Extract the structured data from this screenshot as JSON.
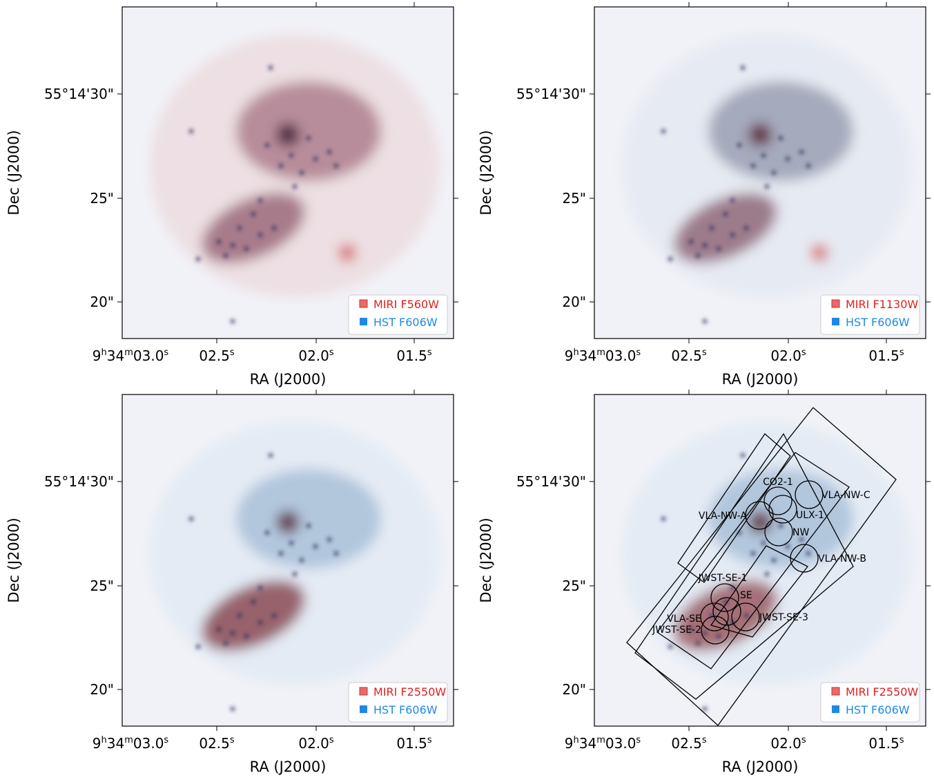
{
  "panels": [
    {
      "legend": [
        "MIRI F560W",
        "HST F606W"
      ],
      "x_label": "RA (J2000)",
      "y_label": "Dec (J2000)",
      "x_tick_labels": [
        [
          "9",
          "h",
          "34",
          "m",
          "03.0",
          "s"
        ],
        [
          "02.5",
          "s"
        ],
        [
          "02.0",
          "s"
        ],
        [
          "01.5",
          "s"
        ]
      ],
      "y_tick_labels": [
        "55°14'30\"",
        "25\"",
        "20\""
      ]
    },
    {
      "legend": [
        "MIRI F1130W",
        "HST F606W"
      ],
      "x_label": "RA (J2000)",
      "y_label": "Dec (J2000)",
      "x_tick_labels": [
        [
          "9",
          "h",
          "34",
          "m",
          "03.0",
          "s"
        ],
        [
          "02.5",
          "s"
        ],
        [
          "02.0",
          "s"
        ],
        [
          "01.5",
          "s"
        ]
      ],
      "y_tick_labels": [
        "55°14'30\"",
        "25\"",
        "20\""
      ]
    },
    {
      "legend": [
        "MIRI F2550W",
        "HST F606W"
      ],
      "x_label": "RA (J2000)",
      "y_label": "Dec (J2000)",
      "x_tick_labels": [
        [
          "9",
          "h",
          "34",
          "m",
          "03.0",
          "s"
        ],
        [
          "02.5",
          "s"
        ],
        [
          "02.0",
          "s"
        ],
        [
          "01.5",
          "s"
        ]
      ],
      "y_tick_labels": [
        "55°14'30\"",
        "25\"",
        "20\""
      ]
    },
    {
      "legend": [
        "MIRI F2550W",
        "HST F606W"
      ],
      "x_label": "RA (J2000)",
      "y_label": "Dec (J2000)",
      "x_tick_labels": [
        [
          "9",
          "h",
          "34",
          "m",
          "03.0",
          "s"
        ],
        [
          "02.5",
          "s"
        ],
        [
          "02.0",
          "s"
        ],
        [
          "01.5",
          "s"
        ]
      ],
      "y_tick_labels": [
        "55°14'30\"",
        "25\"",
        "20\""
      ],
      "regions": [
        "CO2-1",
        "VLA-NW-C",
        "VLA-NW-A",
        "ULX-1",
        "NW",
        "VLA-NW-B",
        "JWST-SE-1",
        "SE",
        "VLA-SE",
        "JWST-SE-3",
        "JWST-SE-2"
      ]
    }
  ]
}
